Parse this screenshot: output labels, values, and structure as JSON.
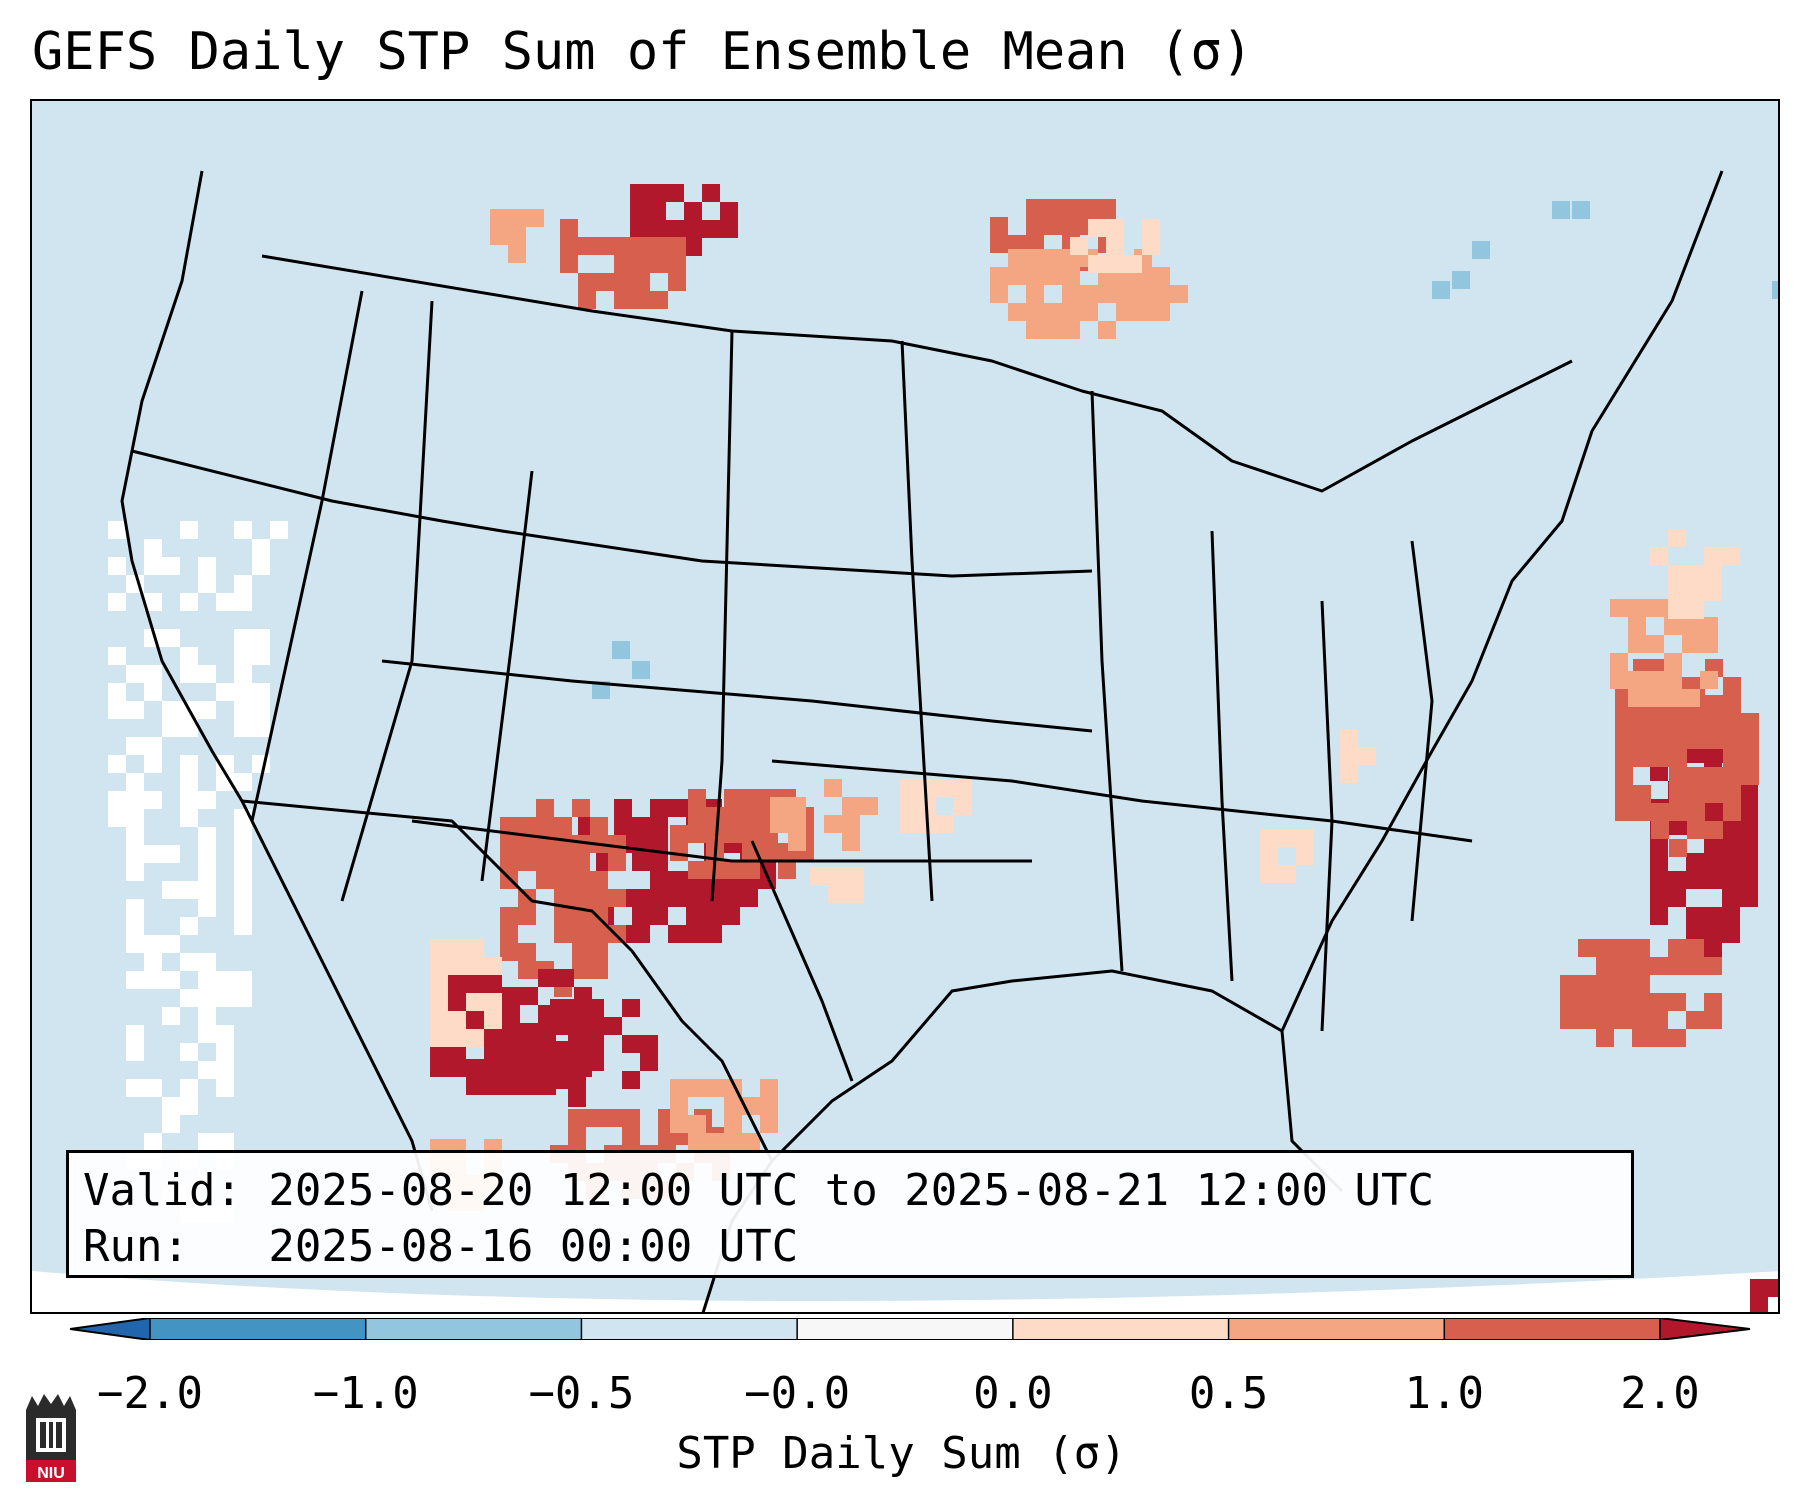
{
  "title": "GEFS Daily STP Sum of Ensemble Mean (σ)",
  "info": {
    "valid_line": "Valid: 2025-08-20 12:00 UTC to 2025-08-21 12:00 UTC",
    "run_line": "Run:   2025-08-16 00:00 UTC"
  },
  "colorbar": {
    "label": "STP Daily Sum (σ)",
    "ticks": [
      "−2.0",
      "−1.0",
      "−0.5",
      "−0.0",
      "0.0",
      "0.5",
      "1.0",
      "2.0"
    ],
    "bins": [
      {
        "range": "-2.0 to -1.0",
        "color": "#4393c3"
      },
      {
        "range": "-1.0 to -0.5",
        "color": "#92c5de"
      },
      {
        "range": "-0.5 to -0.0",
        "color": "#d1e5f0"
      },
      {
        "range": "-0.0 to 0.0",
        "color": "#f7f7f7"
      },
      {
        "range": "0.0 to 0.5",
        "color": "#fddbc7"
      },
      {
        "range": "0.5 to 1.0",
        "color": "#f4a582"
      },
      {
        "range": "1.0 to 2.0",
        "color": "#d6604d"
      }
    ],
    "under_color": "#2166ac",
    "over_color": "#b2182b"
  },
  "map": {
    "background_color": "#d1e5f0",
    "region": "Continental United States",
    "borders": "states, countries, coastlines"
  },
  "logo": {
    "text": "NIU",
    "color": "#c8102e"
  }
}
